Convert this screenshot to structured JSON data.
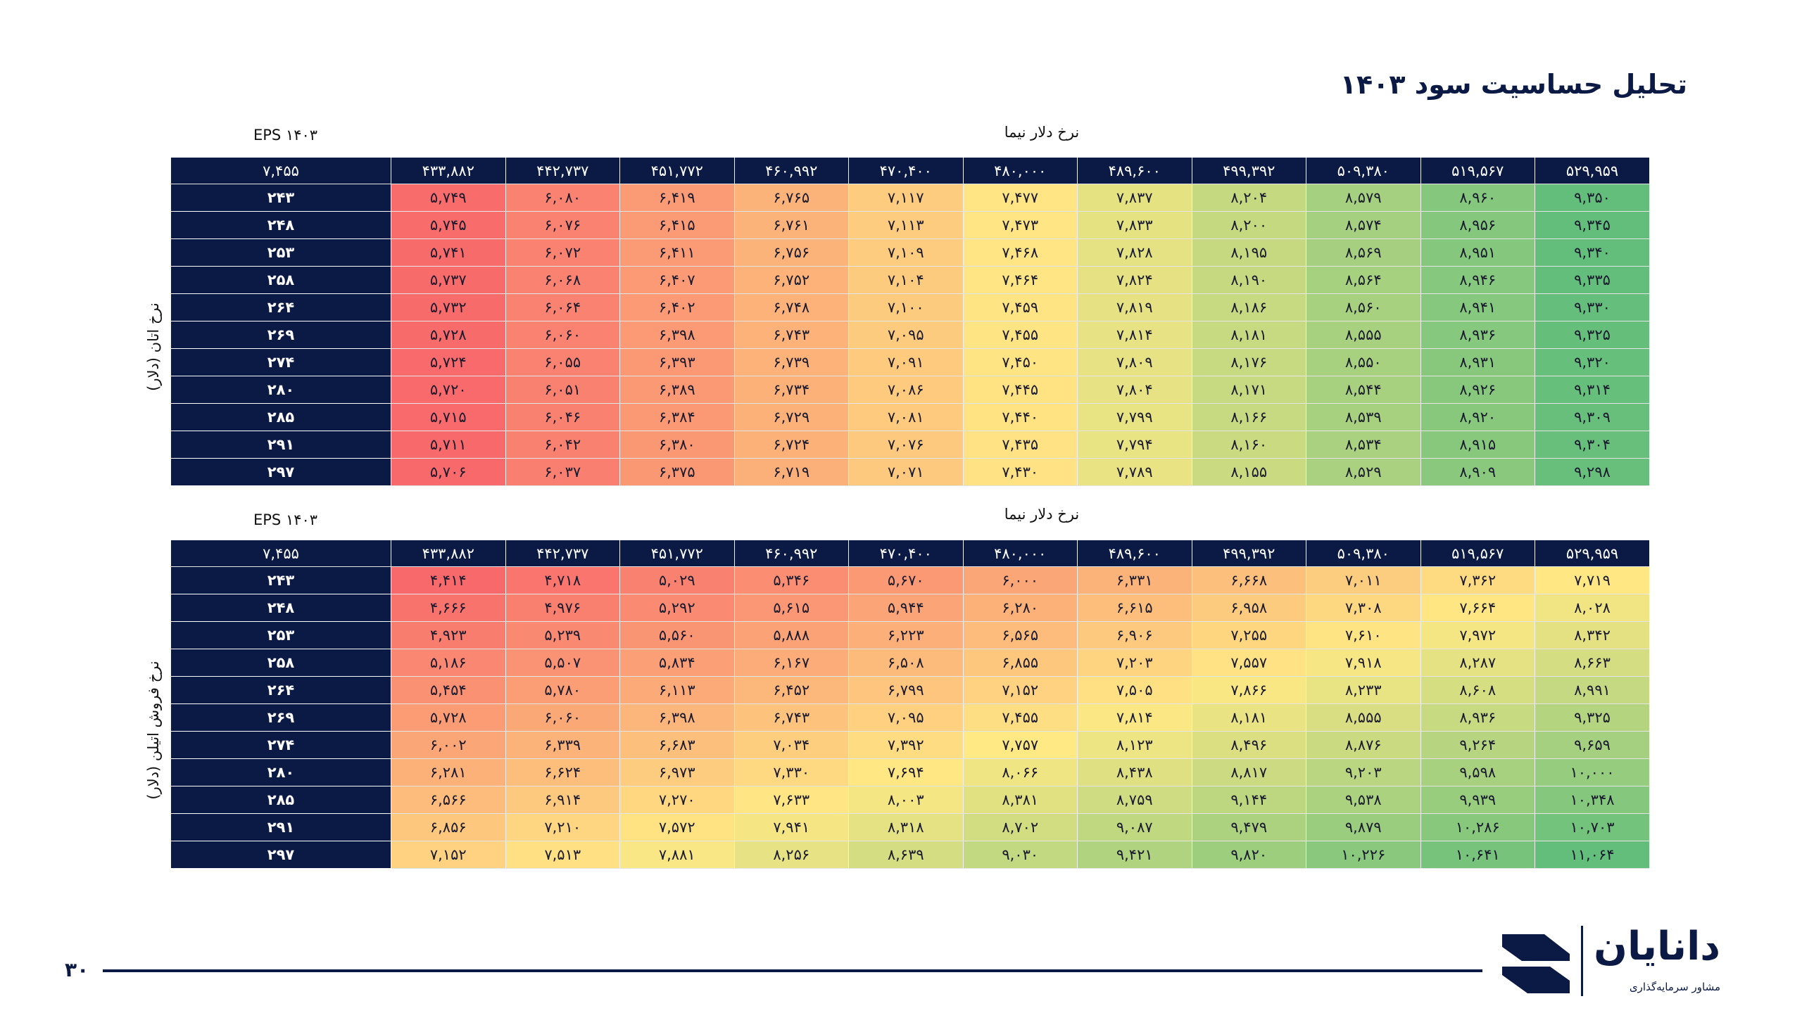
{
  "title": "تحلیل حساسیت سود ۱۴۰۳",
  "page_number": "۳۰",
  "brand": {
    "name": "دانایان",
    "tagline": "مشاور سرمایه‌گذاری",
    "color": "#0b1a45"
  },
  "colors": {
    "low": "#f8696b",
    "mid": "#ffe984",
    "high": "#63be7b",
    "header": "#0b1a45"
  },
  "table1": {
    "eps_label": "EPS ۱۴۰۳",
    "column_axis_label": "نرخ دلار نیما",
    "row_axis_label": "نرخ اتان (دلار)",
    "corner": "۷,۴۵۵",
    "columns": [
      "۵۲۹,۹۵۹",
      "۵۱۹,۵۶۷",
      "۵۰۹,۳۸۰",
      "۴۹۹,۳۹۲",
      "۴۸۹,۶۰۰",
      "۴۸۰,۰۰۰",
      "۴۷۰,۴۰۰",
      "۴۶۰,۹۹۲",
      "۴۵۱,۷۷۲",
      "۴۴۲,۷۳۷",
      "۴۳۳,۸۸۲"
    ],
    "rows": [
      {
        "label": "۲۴۳",
        "values": [
          "۹,۳۵۰",
          "۸,۹۶۰",
          "۸,۵۷۹",
          "۸,۲۰۴",
          "۷,۸۳۷",
          "۷,۴۷۷",
          "۷,۱۱۷",
          "۶,۷۶۵",
          "۶,۴۱۹",
          "۶,۰۸۰",
          "۵,۷۴۹"
        ]
      },
      {
        "label": "۲۴۸",
        "values": [
          "۹,۳۴۵",
          "۸,۹۵۶",
          "۸,۵۷۴",
          "۸,۲۰۰",
          "۷,۸۳۳",
          "۷,۴۷۳",
          "۷,۱۱۳",
          "۶,۷۶۱",
          "۶,۴۱۵",
          "۶,۰۷۶",
          "۵,۷۴۵"
        ]
      },
      {
        "label": "۲۵۳",
        "values": [
          "۹,۳۴۰",
          "۸,۹۵۱",
          "۸,۵۶۹",
          "۸,۱۹۵",
          "۷,۸۲۸",
          "۷,۴۶۸",
          "۷,۱۰۹",
          "۶,۷۵۶",
          "۶,۴۱۱",
          "۶,۰۷۲",
          "۵,۷۴۱"
        ]
      },
      {
        "label": "۲۵۸",
        "values": [
          "۹,۳۳۵",
          "۸,۹۴۶",
          "۸,۵۶۴",
          "۸,۱۹۰",
          "۷,۸۲۴",
          "۷,۴۶۴",
          "۷,۱۰۴",
          "۶,۷۵۲",
          "۶,۴۰۷",
          "۶,۰۶۸",
          "۵,۷۳۷"
        ]
      },
      {
        "label": "۲۶۴",
        "values": [
          "۹,۳۳۰",
          "۸,۹۴۱",
          "۸,۵۶۰",
          "۸,۱۸۶",
          "۷,۸۱۹",
          "۷,۴۵۹",
          "۷,۱۰۰",
          "۶,۷۴۸",
          "۶,۴۰۲",
          "۶,۰۶۴",
          "۵,۷۳۲"
        ]
      },
      {
        "label": "۲۶۹",
        "values": [
          "۹,۳۲۵",
          "۸,۹۳۶",
          "۸,۵۵۵",
          "۸,۱۸۱",
          "۷,۸۱۴",
          "۷,۴۵۵",
          "۷,۰۹۵",
          "۶,۷۴۳",
          "۶,۳۹۸",
          "۶,۰۶۰",
          "۵,۷۲۸"
        ]
      },
      {
        "label": "۲۷۴",
        "values": [
          "۹,۳۲۰",
          "۸,۹۳۱",
          "۸,۵۵۰",
          "۸,۱۷۶",
          "۷,۸۰۹",
          "۷,۴۵۰",
          "۷,۰۹۱",
          "۶,۷۳۹",
          "۶,۳۹۳",
          "۶,۰۵۵",
          "۵,۷۲۴"
        ]
      },
      {
        "label": "۲۸۰",
        "values": [
          "۹,۳۱۴",
          "۸,۹۲۶",
          "۸,۵۴۴",
          "۸,۱۷۱",
          "۷,۸۰۴",
          "۷,۴۴۵",
          "۷,۰۸۶",
          "۶,۷۳۴",
          "۶,۳۸۹",
          "۶,۰۵۱",
          "۵,۷۲۰"
        ]
      },
      {
        "label": "۲۸۵",
        "values": [
          "۹,۳۰۹",
          "۸,۹۲۰",
          "۸,۵۳۹",
          "۸,۱۶۶",
          "۷,۷۹۹",
          "۷,۴۴۰",
          "۷,۰۸۱",
          "۶,۷۲۹",
          "۶,۳۸۴",
          "۶,۰۴۶",
          "۵,۷۱۵"
        ]
      },
      {
        "label": "۲۹۱",
        "values": [
          "۹,۳۰۴",
          "۸,۹۱۵",
          "۸,۵۳۴",
          "۸,۱۶۰",
          "۷,۷۹۴",
          "۷,۴۳۵",
          "۷,۰۷۶",
          "۶,۷۲۴",
          "۶,۳۸۰",
          "۶,۰۴۲",
          "۵,۷۱۱"
        ]
      },
      {
        "label": "۲۹۷",
        "values": [
          "۹,۲۹۸",
          "۸,۹۰۹",
          "۸,۵۲۹",
          "۸,۱۵۵",
          "۷,۷۸۹",
          "۷,۴۳۰",
          "۷,۰۷۱",
          "۶,۷۱۹",
          "۶,۳۷۵",
          "۶,۰۳۷",
          "۵,۷۰۶"
        ]
      }
    ]
  },
  "table2": {
    "eps_label": "EPS ۱۴۰۳",
    "column_axis_label": "نرخ دلار نیما",
    "row_axis_label": "نرخ فروش اتیلن (دلار)",
    "corner": "۷,۴۵۵",
    "columns": [
      "۵۲۹,۹۵۹",
      "۵۱۹,۵۶۷",
      "۵۰۹,۳۸۰",
      "۴۹۹,۳۹۲",
      "۴۸۹,۶۰۰",
      "۴۸۰,۰۰۰",
      "۴۷۰,۴۰۰",
      "۴۶۰,۹۹۲",
      "۴۵۱,۷۷۲",
      "۴۴۲,۷۳۷",
      "۴۳۳,۸۸۲"
    ],
    "rows": [
      {
        "label": "۲۴۳",
        "values": [
          "۷,۷۱۹",
          "۷,۳۶۲",
          "۷,۰۱۱",
          "۶,۶۶۸",
          "۶,۳۳۱",
          "۶,۰۰۰",
          "۵,۶۷۰",
          "۵,۳۴۶",
          "۵,۰۲۹",
          "۴,۷۱۸",
          "۴,۴۱۴"
        ]
      },
      {
        "label": "۲۴۸",
        "values": [
          "۸,۰۲۸",
          "۷,۶۶۴",
          "۷,۳۰۸",
          "۶,۹۵۸",
          "۶,۶۱۵",
          "۶,۲۸۰",
          "۵,۹۴۴",
          "۵,۶۱۵",
          "۵,۲۹۲",
          "۴,۹۷۶",
          "۴,۶۶۶"
        ]
      },
      {
        "label": "۲۵۳",
        "values": [
          "۸,۳۴۲",
          "۷,۹۷۲",
          "۷,۶۱۰",
          "۷,۲۵۵",
          "۶,۹۰۶",
          "۶,۵۶۵",
          "۶,۲۲۳",
          "۵,۸۸۸",
          "۵,۵۶۰",
          "۵,۲۳۹",
          "۴,۹۲۳"
        ]
      },
      {
        "label": "۲۵۸",
        "values": [
          "۸,۶۶۳",
          "۸,۲۸۷",
          "۷,۹۱۸",
          "۷,۵۵۷",
          "۷,۲۰۳",
          "۶,۸۵۵",
          "۶,۵۰۸",
          "۶,۱۶۷",
          "۵,۸۳۴",
          "۵,۵۰۷",
          "۵,۱۸۶"
        ]
      },
      {
        "label": "۲۶۴",
        "values": [
          "۸,۹۹۱",
          "۸,۶۰۸",
          "۸,۲۳۳",
          "۷,۸۶۶",
          "۷,۵۰۵",
          "۷,۱۵۲",
          "۶,۷۹۹",
          "۶,۴۵۲",
          "۶,۱۱۳",
          "۵,۷۸۰",
          "۵,۴۵۴"
        ]
      },
      {
        "label": "۲۶۹",
        "values": [
          "۹,۳۲۵",
          "۸,۹۳۶",
          "۸,۵۵۵",
          "۸,۱۸۱",
          "۷,۸۱۴",
          "۷,۴۵۵",
          "۷,۰۹۵",
          "۶,۷۴۳",
          "۶,۳۹۸",
          "۶,۰۶۰",
          "۵,۷۲۸"
        ]
      },
      {
        "label": "۲۷۴",
        "values": [
          "۹,۶۵۹",
          "۹,۲۶۴",
          "۸,۸۷۶",
          "۸,۴۹۶",
          "۸,۱۲۳",
          "۷,۷۵۷",
          "۷,۳۹۲",
          "۷,۰۳۴",
          "۶,۶۸۳",
          "۶,۳۳۹",
          "۶,۰۰۲"
        ]
      },
      {
        "label": "۲۸۰",
        "values": [
          "۱۰,۰۰۰",
          "۹,۵۹۸",
          "۹,۲۰۳",
          "۸,۸۱۷",
          "۸,۴۳۸",
          "۸,۰۶۶",
          "۷,۶۹۴",
          "۷,۳۳۰",
          "۶,۹۷۳",
          "۶,۶۲۴",
          "۶,۲۸۱"
        ]
      },
      {
        "label": "۲۸۵",
        "values": [
          "۱۰,۳۴۸",
          "۹,۹۳۹",
          "۹,۵۳۸",
          "۹,۱۴۴",
          "۸,۷۵۹",
          "۸,۳۸۱",
          "۸,۰۰۳",
          "۷,۶۳۳",
          "۷,۲۷۰",
          "۶,۹۱۴",
          "۶,۵۶۶"
        ]
      },
      {
        "label": "۲۹۱",
        "values": [
          "۱۰,۷۰۳",
          "۱۰,۲۸۶",
          "۹,۸۷۹",
          "۹,۴۷۹",
          "۹,۰۸۷",
          "۸,۷۰۲",
          "۸,۳۱۸",
          "۷,۹۴۱",
          "۷,۵۷۲",
          "۷,۲۱۰",
          "۶,۸۵۶"
        ]
      },
      {
        "label": "۲۹۷",
        "values": [
          "۱۱,۰۶۴",
          "۱۰,۶۴۱",
          "۱۰,۲۲۶",
          "۹,۸۲۰",
          "۹,۴۲۱",
          "۹,۰۳۰",
          "۸,۶۳۹",
          "۸,۲۵۶",
          "۷,۸۸۱",
          "۷,۵۱۳",
          "۷,۱۵۲"
        ]
      }
    ]
  }
}
